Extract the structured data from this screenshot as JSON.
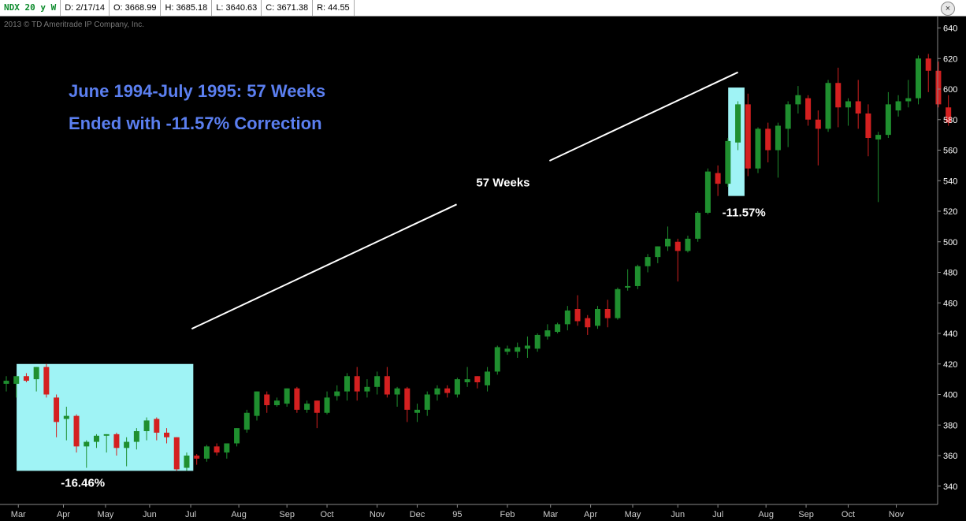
{
  "header": {
    "symbol": "NDX 20 y W",
    "date": "D: 2/17/14",
    "open": "O: 3668.99",
    "high": "H: 3685.18",
    "low": "L: 3640.63",
    "close": "C: 3671.38",
    "range": "R: 44.55"
  },
  "copyright": "2013 © TD Ameritrade IP Company, Inc.",
  "colors": {
    "up": "#1f8f2f",
    "down": "#d42020",
    "highlight": "#9ff3f5",
    "annotation": "#5b7ff0"
  },
  "chart_data": {
    "type": "candlestick",
    "title": "June 1994-July 1995: 57 Weeks",
    "subtitle": "Ended with -11.57% Correction",
    "y_range": [
      328,
      648
    ],
    "y_ticks": [
      340,
      360,
      380,
      400,
      420,
      440,
      460,
      480,
      500,
      520,
      540,
      560,
      580,
      600,
      620,
      640
    ],
    "x_labels": [
      {
        "label": "Mar",
        "week": 1.2
      },
      {
        "label": "Apr",
        "week": 5.7
      },
      {
        "label": "May",
        "week": 9.9
      },
      {
        "label": "Jun",
        "week": 14.3
      },
      {
        "label": "Jul",
        "week": 18.4
      },
      {
        "label": "Aug",
        "week": 23.2
      },
      {
        "label": "Sep",
        "week": 28
      },
      {
        "label": "Oct",
        "week": 32
      },
      {
        "label": "Nov",
        "week": 37
      },
      {
        "label": "Dec",
        "week": 41
      },
      {
        "label": "95",
        "week": 45
      },
      {
        "label": "Feb",
        "week": 50
      },
      {
        "label": "Mar",
        "week": 54.3
      },
      {
        "label": "Apr",
        "week": 58.3
      },
      {
        "label": "May",
        "week": 62.5
      },
      {
        "label": "Jun",
        "week": 67
      },
      {
        "label": "Jul",
        "week": 71
      },
      {
        "label": "Aug",
        "week": 75.8
      },
      {
        "label": "Sep",
        "week": 79.8
      },
      {
        "label": "Oct",
        "week": 84
      },
      {
        "label": "Nov",
        "week": 88.8
      }
    ],
    "candles": [
      {
        "o": 407,
        "h": 412,
        "l": 402,
        "c": 409
      },
      {
        "o": 407,
        "h": 412,
        "l": 398,
        "c": 412
      },
      {
        "o": 412,
        "h": 414,
        "l": 408,
        "c": 409
      },
      {
        "o": 410,
        "h": 418,
        "l": 402,
        "c": 418
      },
      {
        "o": 418,
        "h": 420,
        "l": 398,
        "c": 400
      },
      {
        "o": 398,
        "h": 400,
        "l": 372,
        "c": 382
      },
      {
        "o": 384,
        "h": 392,
        "l": 370,
        "c": 386
      },
      {
        "o": 386,
        "h": 387,
        "l": 362,
        "c": 366
      },
      {
        "o": 366,
        "h": 370,
        "l": 352,
        "c": 369
      },
      {
        "o": 369,
        "h": 374,
        "l": 365,
        "c": 373
      },
      {
        "o": 373,
        "h": 374,
        "l": 362,
        "c": 374
      },
      {
        "o": 374,
        "h": 375,
        "l": 360,
        "c": 365
      },
      {
        "o": 365,
        "h": 372,
        "l": 353,
        "c": 369
      },
      {
        "o": 369,
        "h": 378,
        "l": 364,
        "c": 376
      },
      {
        "o": 376,
        "h": 385,
        "l": 370,
        "c": 383
      },
      {
        "o": 384,
        "h": 385,
        "l": 370,
        "c": 375
      },
      {
        "o": 375,
        "h": 378,
        "l": 368,
        "c": 372
      },
      {
        "o": 372,
        "h": 372,
        "l": 350,
        "c": 351
      },
      {
        "o": 352,
        "h": 362,
        "l": 350,
        "c": 360
      },
      {
        "o": 360,
        "h": 361,
        "l": 354,
        "c": 358
      },
      {
        "o": 358,
        "h": 367,
        "l": 356,
        "c": 366
      },
      {
        "o": 366,
        "h": 368,
        "l": 360,
        "c": 362
      },
      {
        "o": 362,
        "h": 368,
        "l": 358,
        "c": 368
      },
      {
        "o": 368,
        "h": 378,
        "l": 366,
        "c": 378
      },
      {
        "o": 377,
        "h": 390,
        "l": 375,
        "c": 388
      },
      {
        "o": 386,
        "h": 402,
        "l": 383,
        "c": 402
      },
      {
        "o": 400,
        "h": 402,
        "l": 388,
        "c": 393
      },
      {
        "o": 393,
        "h": 398,
        "l": 392,
        "c": 396
      },
      {
        "o": 394,
        "h": 404,
        "l": 392,
        "c": 404
      },
      {
        "o": 404,
        "h": 405,
        "l": 388,
        "c": 390
      },
      {
        "o": 390,
        "h": 396,
        "l": 388,
        "c": 394
      },
      {
        "o": 396,
        "h": 396,
        "l": 378,
        "c": 388
      },
      {
        "o": 388,
        "h": 402,
        "l": 387,
        "c": 398
      },
      {
        "o": 399,
        "h": 406,
        "l": 396,
        "c": 402
      },
      {
        "o": 402,
        "h": 414,
        "l": 396,
        "c": 412
      },
      {
        "o": 412,
        "h": 418,
        "l": 396,
        "c": 402
      },
      {
        "o": 402,
        "h": 410,
        "l": 398,
        "c": 405
      },
      {
        "o": 405,
        "h": 415,
        "l": 400,
        "c": 412
      },
      {
        "o": 412,
        "h": 418,
        "l": 398,
        "c": 400
      },
      {
        "o": 400,
        "h": 405,
        "l": 392,
        "c": 404
      },
      {
        "o": 404,
        "h": 405,
        "l": 382,
        "c": 390
      },
      {
        "o": 388,
        "h": 394,
        "l": 382,
        "c": 390
      },
      {
        "o": 390,
        "h": 402,
        "l": 386,
        "c": 400
      },
      {
        "o": 400,
        "h": 406,
        "l": 396,
        "c": 404
      },
      {
        "o": 404,
        "h": 406,
        "l": 398,
        "c": 401
      },
      {
        "o": 400,
        "h": 411,
        "l": 398,
        "c": 410
      },
      {
        "o": 408,
        "h": 418,
        "l": 405,
        "c": 410
      },
      {
        "o": 412,
        "h": 412,
        "l": 404,
        "c": 408
      },
      {
        "o": 406,
        "h": 418,
        "l": 402,
        "c": 415
      },
      {
        "o": 415,
        "h": 432,
        "l": 413,
        "c": 431
      },
      {
        "o": 428,
        "h": 432,
        "l": 426,
        "c": 430
      },
      {
        "o": 428,
        "h": 434,
        "l": 424,
        "c": 431
      },
      {
        "o": 430,
        "h": 438,
        "l": 424,
        "c": 432
      },
      {
        "o": 430,
        "h": 440,
        "l": 428,
        "c": 439
      },
      {
        "o": 438,
        "h": 446,
        "l": 436,
        "c": 442
      },
      {
        "o": 441,
        "h": 447,
        "l": 440,
        "c": 446
      },
      {
        "o": 446,
        "h": 458,
        "l": 442,
        "c": 455
      },
      {
        "o": 456,
        "h": 465,
        "l": 445,
        "c": 448
      },
      {
        "o": 450,
        "h": 452,
        "l": 439,
        "c": 444
      },
      {
        "o": 445,
        "h": 458,
        "l": 443,
        "c": 456
      },
      {
        "o": 456,
        "h": 462,
        "l": 444,
        "c": 450
      },
      {
        "o": 450,
        "h": 470,
        "l": 449,
        "c": 469
      },
      {
        "o": 470,
        "h": 482,
        "l": 468,
        "c": 471
      },
      {
        "o": 471,
        "h": 485,
        "l": 469,
        "c": 484
      },
      {
        "o": 484,
        "h": 492,
        "l": 480,
        "c": 490
      },
      {
        "o": 490,
        "h": 497,
        "l": 486,
        "c": 497
      },
      {
        "o": 497,
        "h": 510,
        "l": 494,
        "c": 502
      },
      {
        "o": 500,
        "h": 502,
        "l": 474,
        "c": 494
      },
      {
        "o": 494,
        "h": 504,
        "l": 493,
        "c": 502
      },
      {
        "o": 502,
        "h": 520,
        "l": 500,
        "c": 519
      },
      {
        "o": 519,
        "h": 548,
        "l": 518,
        "c": 546
      },
      {
        "o": 545,
        "h": 550,
        "l": 530,
        "c": 538
      },
      {
        "o": 538,
        "h": 568,
        "l": 536,
        "c": 566
      },
      {
        "o": 565,
        "h": 592,
        "l": 560,
        "c": 590
      },
      {
        "o": 590,
        "h": 597,
        "l": 543,
        "c": 548
      },
      {
        "o": 548,
        "h": 575,
        "l": 545,
        "c": 574
      },
      {
        "o": 574,
        "h": 578,
        "l": 552,
        "c": 560
      },
      {
        "o": 560,
        "h": 578,
        "l": 542,
        "c": 576
      },
      {
        "o": 574,
        "h": 592,
        "l": 562,
        "c": 590
      },
      {
        "o": 590,
        "h": 602,
        "l": 584,
        "c": 596
      },
      {
        "o": 594,
        "h": 596,
        "l": 576,
        "c": 580
      },
      {
        "o": 580,
        "h": 586,
        "l": 550,
        "c": 574
      },
      {
        "o": 574,
        "h": 606,
        "l": 572,
        "c": 604
      },
      {
        "o": 604,
        "h": 614,
        "l": 575,
        "c": 588
      },
      {
        "o": 588,
        "h": 594,
        "l": 576,
        "c": 592
      },
      {
        "o": 592,
        "h": 606,
        "l": 574,
        "c": 584
      },
      {
        "o": 584,
        "h": 590,
        "l": 556,
        "c": 568
      },
      {
        "o": 567,
        "h": 572,
        "l": 526,
        "c": 570
      },
      {
        "o": 570,
        "h": 598,
        "l": 568,
        "c": 590
      },
      {
        "o": 586,
        "h": 596,
        "l": 582,
        "c": 592
      },
      {
        "o": 592,
        "h": 606,
        "l": 588,
        "c": 594
      },
      {
        "o": 594,
        "h": 622,
        "l": 590,
        "c": 620
      },
      {
        "o": 620,
        "h": 623,
        "l": 598,
        "c": 612
      },
      {
        "o": 612,
        "h": 618,
        "l": 588,
        "c": 590
      },
      {
        "o": 588,
        "h": 596,
        "l": 576,
        "c": 578
      }
    ],
    "annotations": {
      "box1_label": "-16.46%",
      "box2_label": "-11.57%",
      "line_label": "57 Weeks"
    },
    "highlights": [
      {
        "week_start": 1.5,
        "week_end": 18.5,
        "low": 350,
        "high": 420,
        "label": "-16.46%"
      },
      {
        "week_start": 72.5,
        "week_end": 73.5,
        "low": 530,
        "high": 601,
        "label": "-11.57%"
      }
    ],
    "trend_line": {
      "from": {
        "week": 18.5,
        "value": 443
      },
      "to": {
        "week": 73,
        "value": 611
      },
      "label": "57 Weeks"
    }
  }
}
